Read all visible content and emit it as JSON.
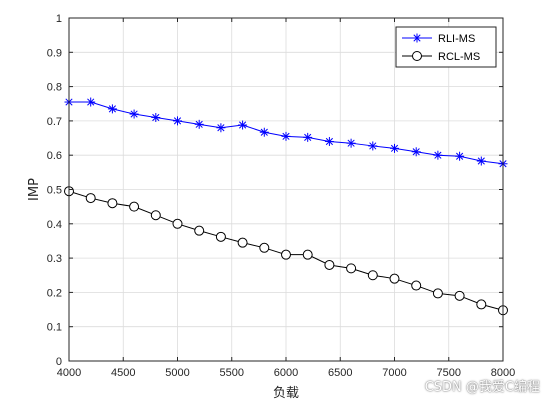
{
  "chart_data": {
    "type": "line",
    "title": "",
    "xlabel": "负载",
    "ylabel": "IMP",
    "xlim": [
      4000,
      8000
    ],
    "ylim": [
      0,
      1
    ],
    "xticks": [
      4000,
      4500,
      5000,
      5500,
      6000,
      6500,
      7000,
      7500,
      8000
    ],
    "yticks": [
      0,
      0.1,
      0.2,
      0.3,
      0.4,
      0.5,
      0.6,
      0.7,
      0.8,
      0.9,
      1
    ],
    "grid": true,
    "legend_position": "top-right",
    "x": [
      4000,
      4200,
      4400,
      4600,
      4800,
      5000,
      5200,
      5400,
      5600,
      5800,
      6000,
      6200,
      6400,
      6600,
      6800,
      7000,
      7200,
      7400,
      7600,
      7800,
      8000
    ],
    "series": [
      {
        "name": "RLI-MS",
        "color": "#0000ff",
        "marker": "asterisk",
        "values": [
          0.755,
          0.755,
          0.735,
          0.72,
          0.71,
          0.7,
          0.69,
          0.68,
          0.688,
          0.667,
          0.655,
          0.652,
          0.64,
          0.635,
          0.627,
          0.62,
          0.61,
          0.6,
          0.597,
          0.583,
          0.575
        ]
      },
      {
        "name": "RCL-MS",
        "color": "#000000",
        "marker": "circle",
        "values": [
          0.495,
          0.475,
          0.46,
          0.45,
          0.425,
          0.4,
          0.38,
          0.362,
          0.345,
          0.33,
          0.31,
          0.31,
          0.28,
          0.27,
          0.25,
          0.24,
          0.22,
          0.197,
          0.19,
          0.165,
          0.148
        ]
      }
    ]
  },
  "watermark": "CSDN @我爱C编程"
}
